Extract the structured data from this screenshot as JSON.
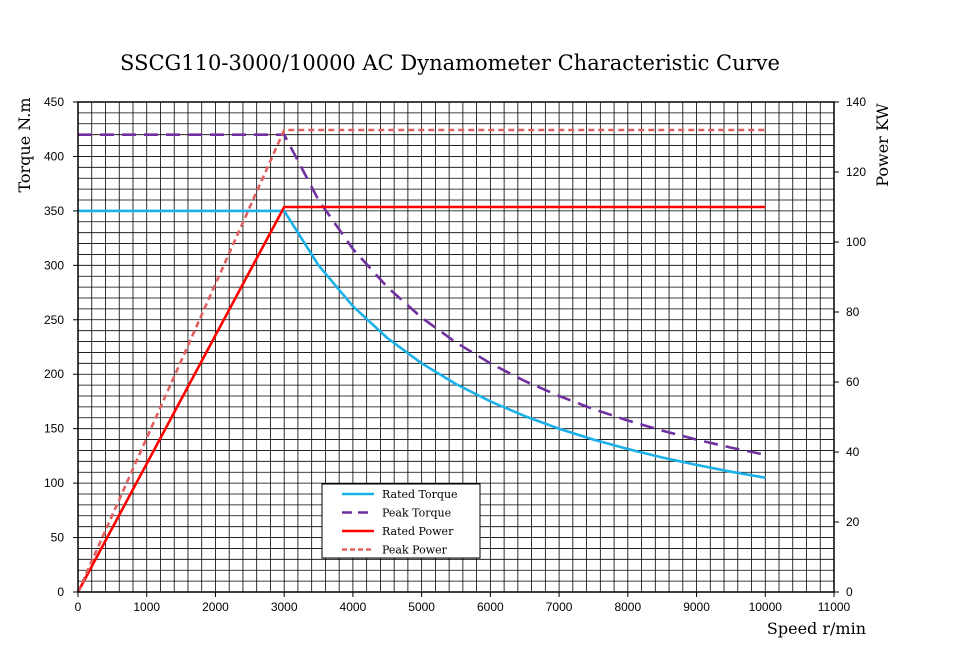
{
  "chart_data": {
    "type": "line",
    "title": "SSCG110-3000/10000 AC Dynamometer Characteristic Curve",
    "xlabel": "Speed r/min",
    "ylabel_left": "Torque N.m",
    "ylabel_right": "Power KW",
    "xlim": [
      0,
      11000
    ],
    "ylim_left": [
      0,
      450
    ],
    "ylim_right": [
      0,
      140
    ],
    "x_ticks": [
      "0",
      "1000",
      "2000",
      "3000",
      "4000",
      "5000",
      "6000",
      "7000",
      "8000",
      "9000",
      "10000",
      "11000"
    ],
    "y_left_ticks": [
      "0",
      "50",
      "100",
      "150",
      "200",
      "250",
      "300",
      "350",
      "400",
      "450"
    ],
    "y_right_ticks": [
      "0",
      "20",
      "40",
      "60",
      "80",
      "100",
      "120",
      "140"
    ],
    "grid": true,
    "legend_position": "bottom-center",
    "series": [
      {
        "name": "Rated Torque",
        "axis": "left",
        "color": "#1ab0e8",
        "dash": "solid",
        "x": [
          0,
          3000,
          3500,
          4000,
          4500,
          5000,
          5500,
          6000,
          6500,
          7000,
          7500,
          8000,
          8500,
          9000,
          9500,
          10000
        ],
        "values": [
          350,
          350,
          300,
          262.5,
          233.3,
          210,
          190.9,
          175,
          161.5,
          150,
          140,
          131.3,
          123.5,
          116.7,
          110.5,
          105
        ]
      },
      {
        "name": "Peak Torque",
        "axis": "left",
        "color": "#7030a0",
        "dash": "long-dash",
        "x": [
          0,
          3000,
          3500,
          4000,
          4500,
          5000,
          5500,
          6000,
          6500,
          7000,
          7500,
          8000,
          8500,
          9000,
          9500,
          10000
        ],
        "values": [
          420,
          420,
          360,
          315,
          280,
          252,
          229.1,
          210,
          193.8,
          180,
          168,
          157.5,
          148.2,
          140,
          132.6,
          126
        ]
      },
      {
        "name": "Rated Power",
        "axis": "right",
        "color": "#ff0000",
        "dash": "solid",
        "x": [
          0,
          3000,
          10000
        ],
        "values": [
          0,
          110,
          110
        ]
      },
      {
        "name": "Peak Power",
        "axis": "right",
        "color": "#e06060",
        "dash": "dashed",
        "x": [
          0,
          3000,
          10000
        ],
        "values": [
          0,
          132,
          132
        ]
      }
    ]
  }
}
